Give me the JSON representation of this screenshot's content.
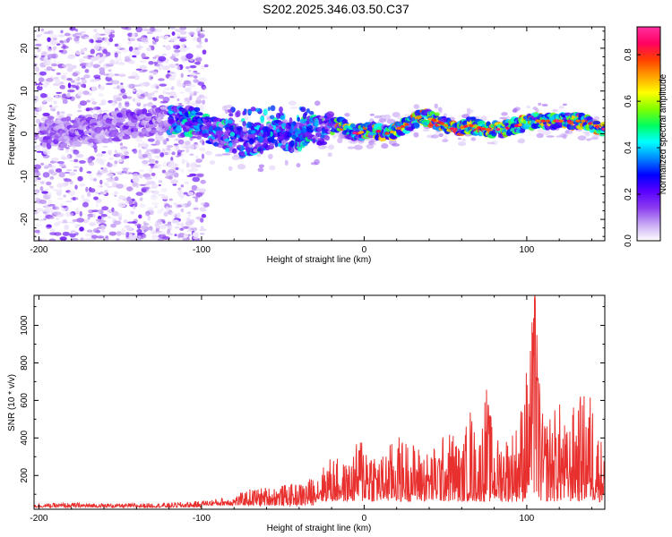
{
  "title": "S202.2025.346.03.50.C37",
  "chart_data": [
    {
      "type": "heatmap",
      "name": "spectrogram",
      "xlabel": "Height of straight line (km)",
      "ylabel": "Frequency (Hz)",
      "xlim": [
        -203,
        148
      ],
      "ylim": [
        -25,
        25
      ],
      "xticks": [
        -200,
        -100,
        0,
        100
      ],
      "yticks": [
        -20,
        -10,
        0,
        10,
        20
      ],
      "colorbar": {
        "label": "Normalized spectral amplitude",
        "range": [
          0,
          0.92
        ],
        "ticks": [
          0.0,
          0.2,
          0.4,
          0.6,
          0.8
        ],
        "ticklabels": [
          "0.0",
          "0.2",
          "0.4",
          "0.6",
          "0.8"
        ],
        "colormap": [
          "#ffffff",
          "#c8a8f4",
          "#8a3cf0",
          "#5a00ff",
          "#0000ff",
          "#0088ff",
          "#00ffff",
          "#00ff60",
          "#80ff00",
          "#ffff00",
          "#ffa000",
          "#ff4000",
          "#ff0060",
          "#ff2fa0"
        ]
      },
      "ridge": {
        "x": [
          -190,
          -170,
          -150,
          -120,
          -105,
          -95,
          -85,
          -75,
          -65,
          -55,
          -45,
          -35,
          -25,
          -15,
          -5,
          5,
          15,
          25,
          35,
          45,
          55,
          65,
          75,
          85,
          95,
          105,
          115,
          125,
          135,
          148
        ],
        "y": [
          0,
          1,
          2,
          3,
          3,
          1,
          0,
          -2,
          -1,
          0,
          -1,
          1,
          1,
          2,
          0,
          1,
          0,
          2,
          4,
          3,
          1,
          2,
          1,
          1,
          2,
          3,
          3,
          3,
          3,
          1
        ]
      }
    },
    {
      "type": "line",
      "name": "snr",
      "xlabel": "Height of straight line (km)",
      "ylabel": "SNR (10 * v/v)",
      "xlim": [
        -203,
        148
      ],
      "ylim": [
        20,
        1160
      ],
      "xticks": [
        -200,
        -100,
        0,
        100
      ],
      "yticks": [
        200,
        400,
        600,
        800,
        1000
      ],
      "color": "#e8312f",
      "envelope": {
        "x": [
          -203,
          -180,
          -150,
          -120,
          -100,
          -80,
          -70,
          -60,
          -50,
          -40,
          -30,
          -20,
          -10,
          -1,
          10,
          20,
          30,
          40,
          50,
          55,
          60,
          65,
          70,
          75,
          80,
          90,
          95,
          100,
          105,
          110,
          120,
          125,
          130,
          140,
          145,
          148
        ],
        "y": [
          50,
          55,
          50,
          55,
          65,
          90,
          130,
          140,
          150,
          160,
          200,
          310,
          260,
          450,
          300,
          420,
          380,
          330,
          430,
          450,
          330,
          600,
          350,
          700,
          400,
          440,
          500,
          800,
          1160,
          500,
          600,
          440,
          620,
          660,
          400,
          430
        ]
      }
    }
  ]
}
